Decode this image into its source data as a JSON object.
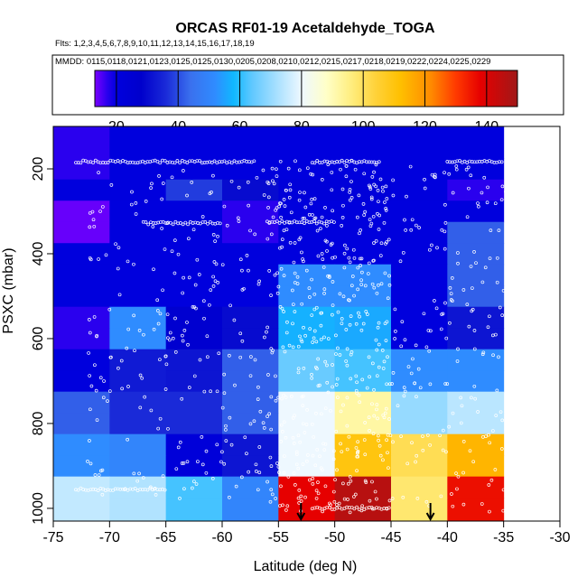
{
  "chart_data": {
    "type": "heatmap",
    "title": "ORCAS RF01-19 Acetaldehyde_TOGA",
    "flights_line": "Flts: 1,2,3,4,5,6,7,8,9,10,11,12,13,14,15,16,17,18,19",
    "dates_line": "MMDD: 0115,0118,0121,0123,0125,0125,0130,0205,0208,0210,0212,0215,0217,0218,0219,0222,0224,0225,0229",
    "xlabel": "Latitude (deg N)",
    "ylabel": "PSXC (mbar)",
    "xlim": [
      -75,
      -30
    ],
    "ylim": [
      1030,
      100
    ],
    "x_ticks": [
      -75,
      -70,
      -65,
      -60,
      -55,
      -50,
      -45,
      -40,
      -35,
      -30
    ],
    "x_tick_labels": [
      "-75",
      "-70",
      "-65",
      "-60",
      "-55",
      "-50",
      "-45",
      "-40",
      "-35",
      "-30"
    ],
    "y_ticks": [
      200,
      400,
      600,
      800,
      1000
    ],
    "y_tick_labels": [
      "200",
      "400",
      "600",
      "800",
      "1000"
    ],
    "colorbar": {
      "min": 13,
      "max": 150,
      "ticks": [
        20,
        40,
        60,
        80,
        100,
        120,
        140
      ],
      "tick_labels": [
        "20",
        "40",
        "60",
        "80",
        "100",
        "120",
        "140"
      ],
      "stops": [
        [
          13,
          "#7b00ff"
        ],
        [
          17,
          "#2a00ee"
        ],
        [
          20,
          "#0000dd"
        ],
        [
          28,
          "#0000cc"
        ],
        [
          36,
          "#1a2ad8"
        ],
        [
          44,
          "#3a70ee"
        ],
        [
          52,
          "#2f8cff"
        ],
        [
          58,
          "#10b8ff"
        ],
        [
          64,
          "#60c8ff"
        ],
        [
          72,
          "#a8e0ff"
        ],
        [
          80,
          "#eef8ff"
        ],
        [
          88,
          "#ffffc8"
        ],
        [
          96,
          "#ffee80"
        ],
        [
          104,
          "#ffd23a"
        ],
        [
          112,
          "#ffc000"
        ],
        [
          122,
          "#ff8a00"
        ],
        [
          130,
          "#ff3a00"
        ],
        [
          138,
          "#e60000"
        ],
        [
          150,
          "#a01818"
        ]
      ]
    },
    "lat_edges": [
      -75,
      -70,
      -65,
      -60,
      -55,
      -50,
      -45,
      -40,
      -35
    ],
    "pres_edges": [
      100,
      175,
      225,
      275,
      325,
      375,
      425,
      475,
      525,
      575,
      625,
      675,
      725,
      775,
      825,
      875,
      925,
      975,
      1030
    ],
    "grid": [
      [
        17,
        20,
        20,
        20,
        20,
        20,
        20,
        20
      ],
      [
        17,
        20,
        20,
        20,
        20,
        20,
        20,
        20
      ],
      [
        20,
        20,
        38,
        30,
        22,
        22,
        20,
        17
      ],
      [
        14,
        20,
        20,
        17,
        20,
        20,
        20,
        20
      ],
      [
        14,
        20,
        20,
        17,
        20,
        20,
        20,
        42
      ],
      [
        20,
        20,
        20,
        20,
        20,
        20,
        20,
        42
      ],
      [
        20,
        20,
        20,
        20,
        52,
        52,
        20,
        42
      ],
      [
        20,
        20,
        20,
        20,
        52,
        52,
        20,
        42
      ],
      [
        17,
        52,
        26,
        30,
        57,
        56,
        20,
        32
      ],
      [
        17,
        52,
        26,
        30,
        57,
        56,
        20,
        32
      ],
      [
        20,
        33,
        32,
        42,
        65,
        62,
        52,
        52
      ],
      [
        20,
        33,
        32,
        42,
        65,
        62,
        52,
        52
      ],
      [
        42,
        36,
        36,
        42,
        80,
        92,
        70,
        74
      ],
      [
        42,
        36,
        36,
        42,
        80,
        92,
        70,
        74
      ],
      [
        52,
        50,
        22,
        32,
        80,
        110,
        101,
        114
      ],
      [
        52,
        50,
        22,
        32,
        80,
        110,
        101,
        114
      ],
      [
        75,
        73,
        62,
        50,
        138,
        146,
        98,
        136
      ],
      [
        75,
        73,
        62,
        50,
        138,
        146,
        98,
        136
      ]
    ],
    "markers": [
      {
        "label": "arrow-1",
        "lat": -53,
        "pres": 1005
      },
      {
        "label": "arrow-2",
        "lat": -41.5,
        "pres": 1005
      }
    ],
    "point_rows": [
      {
        "pres": 183,
        "lat_from": -73,
        "lat_to": -57
      },
      {
        "pres": 183,
        "lat_from": -52,
        "lat_to": -46
      },
      {
        "pres": 183,
        "lat_from": -40,
        "lat_to": -35
      },
      {
        "pres": 328,
        "lat_from": -67,
        "lat_to": -60
      },
      {
        "pres": 326,
        "lat_from": -56,
        "lat_to": -50
      },
      {
        "pres": 955,
        "lat_from": -73,
        "lat_to": -65
      },
      {
        "pres": 1000,
        "lat_from": -52,
        "lat_to": -45
      }
    ]
  }
}
